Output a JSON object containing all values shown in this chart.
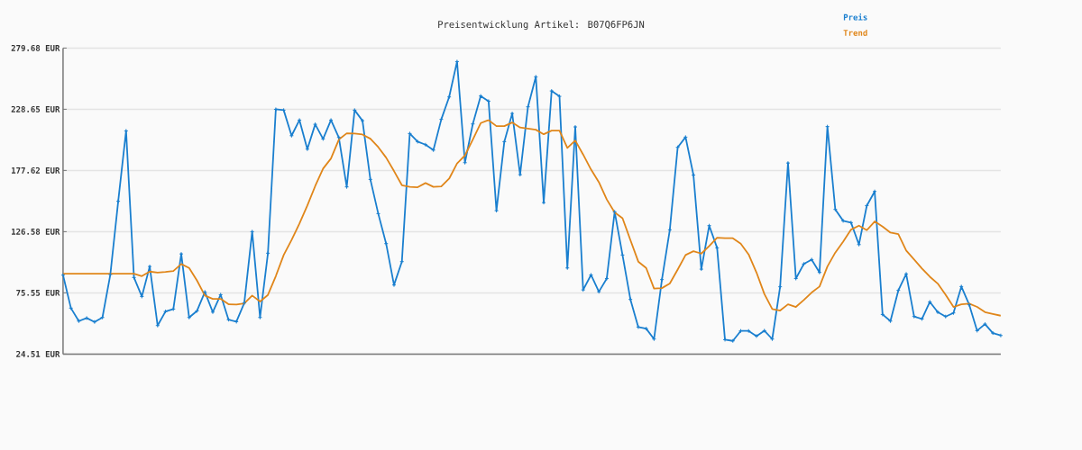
{
  "chart_data": {
    "type": "line",
    "title": "Preisentwicklung Artikel: B07Q6FP6JN",
    "categories": [
      null,
      null,
      null,
      null,
      null,
      null,
      null,
      null,
      null,
      null,
      null,
      null,
      null,
      null,
      null,
      null,
      null,
      null,
      null,
      null,
      null,
      null,
      null,
      null,
      null,
      null,
      null,
      null,
      null,
      null,
      null,
      null,
      null,
      null,
      null,
      null,
      null,
      null,
      null,
      null,
      null,
      null,
      null,
      null,
      null,
      null,
      null,
      null,
      null,
      null,
      null,
      null,
      null,
      null,
      null,
      null,
      null,
      null,
      null,
      null,
      null,
      null,
      null,
      null,
      null,
      null,
      null,
      null,
      null,
      null,
      null,
      null,
      null,
      null,
      null,
      null,
      null,
      null,
      null,
      null,
      null,
      null,
      null,
      null,
      null,
      null,
      null,
      null,
      null,
      null,
      null,
      null,
      null,
      null,
      null,
      null,
      null,
      null,
      null,
      null,
      null,
      null,
      null,
      null,
      null,
      null,
      null,
      null,
      null,
      null,
      null,
      null,
      null,
      null,
      null,
      null,
      null,
      null,
      null,
      null
    ],
    "series": [
      {
        "name": "Preis",
        "color": "#1a7fcf",
        "marker": "cross",
        "values": [
          90.3,
          62.8,
          52.0,
          54.5,
          51.3,
          55.0,
          90.8,
          151.9,
          210.6,
          88.3,
          72.5,
          97.5,
          48.3,
          60.0,
          62.0,
          108.0,
          55.0,
          60.5,
          76.3,
          59.5,
          74.0,
          53.2,
          51.5,
          67.1,
          126.6,
          55.0,
          108.6,
          228.6,
          227.9,
          206.6,
          219.6,
          195.4,
          216.1,
          203.9,
          219.6,
          205.1,
          163.9,
          227.9,
          219.1,
          170.1,
          141.6,
          116.6,
          82.1,
          101.6,
          208.4,
          201.6,
          199.1,
          194.6,
          220.2,
          238.9,
          268.4,
          184.1,
          216.4,
          239.7,
          235.4,
          144.1,
          201.6,
          225.1,
          174.1,
          230.7,
          255.7,
          150.8,
          243.9,
          239.4,
          96.3,
          213.9,
          78.0,
          90.5,
          76.5,
          87.5,
          143.1,
          107.1,
          70.1,
          47.0,
          45.7,
          37.0,
          86.6,
          128.1,
          196.9,
          205.4,
          173.8,
          95.3,
          131.6,
          113.1,
          36.5,
          35.5,
          43.8,
          43.8,
          39.5,
          44.0,
          37.0,
          80.6,
          183.8,
          87.5,
          99.6,
          103.3,
          92.6,
          214.2,
          145.1,
          135.6,
          134.1,
          115.8,
          148.3,
          160.1,
          57.5,
          52.0,
          77.6,
          91.3,
          55.8,
          53.8,
          68.0,
          59.5,
          55.8,
          58.8,
          80.8,
          65.6,
          44.0,
          49.5,
          42.0,
          40.0
        ]
      },
      {
        "name": "Trend",
        "color": "#e0861a",
        "marker": "none",
        "values": [
          91.5,
          91.5,
          91.5,
          91.5,
          91.5,
          91.5,
          91.5,
          91.5,
          91.5,
          91.5,
          89.5,
          93.3,
          92.5,
          93.0,
          93.8,
          99.6,
          96.3,
          85.8,
          73.3,
          70.5,
          70.5,
          66.0,
          65.8,
          66.8,
          73.3,
          68.3,
          73.8,
          89.5,
          107.1,
          119.6,
          133.3,
          148.3,
          164.6,
          179.1,
          187.6,
          203.4,
          208.6,
          208.4,
          207.6,
          204.1,
          197.1,
          188.3,
          177.1,
          165.3,
          163.9,
          163.6,
          167.1,
          163.9,
          164.3,
          170.8,
          183.4,
          190.1,
          203.4,
          217.1,
          219.6,
          214.6,
          214.6,
          217.6,
          213.4,
          212.6,
          211.6,
          207.8,
          210.8,
          210.8,
          196.4,
          202.6,
          190.9,
          178.4,
          167.8,
          153.4,
          142.6,
          137.8,
          119.6,
          101.6,
          96.3,
          79.1,
          79.5,
          83.3,
          95.0,
          107.1,
          110.3,
          108.3,
          114.6,
          121.5,
          121.1,
          121.1,
          116.6,
          107.6,
          92.5,
          74.6,
          62.0,
          60.8,
          66.0,
          63.8,
          69.5,
          75.8,
          80.8,
          97.5,
          109.1,
          118.3,
          128.3,
          131.6,
          127.8,
          135.1,
          130.8,
          125.8,
          124.6,
          110.8,
          103.3,
          95.8,
          89.0,
          83.3,
          74.0,
          63.8,
          66.0,
          66.5,
          63.8,
          59.5,
          58.0,
          56.5
        ]
      }
    ],
    "ylim": [
      24.51,
      279.68
    ],
    "yticks": [
      {
        "value": 24.51,
        "label": "24.51 EUR"
      },
      {
        "value": 75.55,
        "label": "75.55 EUR"
      },
      {
        "value": 126.58,
        "label": "126.58 EUR"
      },
      {
        "value": 177.62,
        "label": "177.62 EUR"
      },
      {
        "value": 228.65,
        "label": "228.65 EUR"
      },
      {
        "value": 279.68,
        "label": "279.68 EUR"
      }
    ],
    "grid": "y",
    "legend": "top right",
    "line_style": "solid"
  }
}
